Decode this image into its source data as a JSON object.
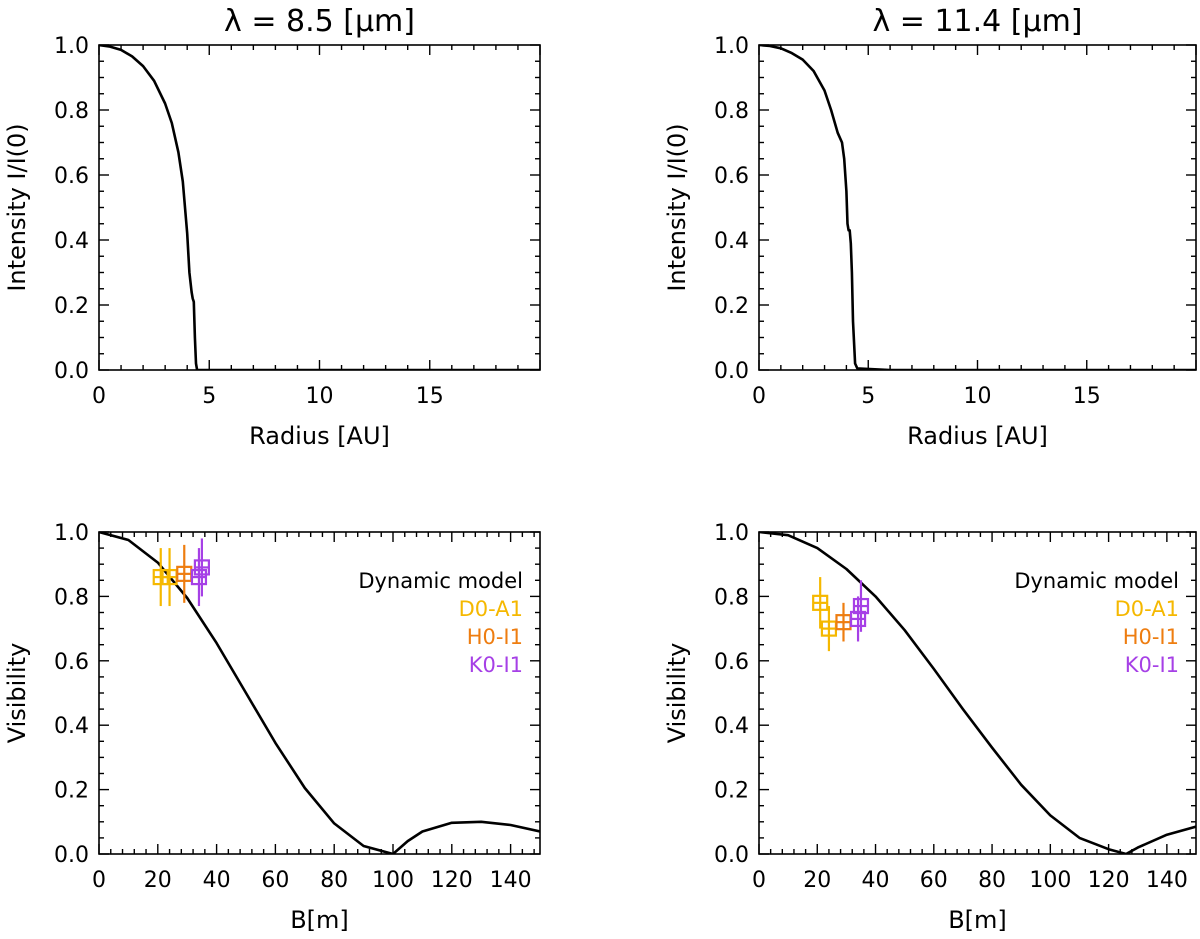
{
  "chart_data": [
    {
      "type": "line",
      "title": "λ = 8.5 [μm]",
      "xlabel": "Radius [AU]",
      "ylabel": "Intensity I/I(0)",
      "xlim": [
        0,
        20
      ],
      "ylim": [
        0,
        1.0
      ],
      "xticks": [
        0,
        5,
        10,
        15
      ],
      "xtick_labels": [
        "0",
        "5",
        "10",
        "15"
      ],
      "yticks": [
        0.0,
        0.2,
        0.4,
        0.6,
        0.8,
        1.0
      ],
      "ytick_labels": [
        "0.0",
        "0.2",
        "0.4",
        "0.6",
        "0.8",
        "1.0"
      ],
      "series": [
        {
          "name": "intensity profile",
          "x": [
            0,
            0.5,
            1.0,
            1.5,
            2.0,
            2.5,
            3.0,
            3.3,
            3.6,
            3.8,
            4.0,
            4.1,
            4.2,
            4.25,
            4.3,
            4.35,
            4.4,
            4.45,
            4.5,
            20
          ],
          "y": [
            1.0,
            0.995,
            0.985,
            0.965,
            0.935,
            0.89,
            0.82,
            0.76,
            0.67,
            0.58,
            0.42,
            0.3,
            0.24,
            0.22,
            0.21,
            0.1,
            0.02,
            0.0,
            0.0,
            0.0
          ]
        }
      ]
    },
    {
      "type": "line",
      "title": "λ = 11.4 [μm]",
      "xlabel": "Radius [AU]",
      "ylabel": "Intensity I/I(0)",
      "xlim": [
        0,
        20
      ],
      "ylim": [
        0,
        1.0
      ],
      "xticks": [
        0,
        5,
        10,
        15
      ],
      "xtick_labels": [
        "0",
        "5",
        "10",
        "15"
      ],
      "yticks": [
        0.0,
        0.2,
        0.4,
        0.6,
        0.8,
        1.0
      ],
      "ytick_labels": [
        "0.0",
        "0.2",
        "0.4",
        "0.6",
        "0.8",
        "1.0"
      ],
      "series": [
        {
          "name": "intensity profile",
          "x": [
            0,
            0.5,
            1.0,
            1.5,
            2.0,
            2.5,
            3.0,
            3.3,
            3.6,
            3.8,
            3.9,
            4.0,
            4.05,
            4.1,
            4.15,
            4.2,
            4.25,
            4.3,
            4.4,
            4.5,
            6.0,
            20
          ],
          "y": [
            1.0,
            0.997,
            0.99,
            0.975,
            0.955,
            0.92,
            0.86,
            0.8,
            0.73,
            0.7,
            0.65,
            0.55,
            0.45,
            0.43,
            0.43,
            0.39,
            0.3,
            0.15,
            0.02,
            0.005,
            0.0,
            0.0
          ]
        }
      ]
    },
    {
      "type": "line",
      "xlabel": "B[m]",
      "ylabel": "Visibility",
      "xlim": [
        0,
        150
      ],
      "ylim": [
        0,
        1.0
      ],
      "xticks": [
        0,
        20,
        40,
        60,
        80,
        100,
        120,
        140
      ],
      "xtick_labels": [
        "0",
        "20",
        "40",
        "60",
        "80",
        "100",
        "120",
        "140"
      ],
      "yticks": [
        0.0,
        0.2,
        0.4,
        0.6,
        0.8,
        1.0
      ],
      "ytick_labels": [
        "0.0",
        "0.2",
        "0.4",
        "0.6",
        "0.8",
        "1.0"
      ],
      "series": [
        {
          "name": "Dynamic model",
          "x": [
            0,
            10,
            20,
            30,
            40,
            50,
            60,
            70,
            80,
            90,
            100,
            105,
            110,
            120,
            130,
            140,
            150
          ],
          "y": [
            1.0,
            0.975,
            0.905,
            0.795,
            0.655,
            0.5,
            0.345,
            0.205,
            0.095,
            0.025,
            0.0,
            0.04,
            0.07,
            0.097,
            0.1,
            0.09,
            0.07
          ]
        }
      ],
      "legend": {
        "title": "Dynamic model",
        "entries": [
          {
            "label": "D0-A1",
            "color": "#f5b800"
          },
          {
            "label": "H0-I1",
            "color": "#ee7d10"
          },
          {
            "label": "K0-I1",
            "color": "#a640e6"
          }
        ]
      },
      "points": [
        {
          "group": "D0-A1",
          "x": 21,
          "y": 0.86,
          "err": 0.09
        },
        {
          "group": "D0-A1",
          "x": 24,
          "y": 0.86,
          "err": 0.09
        },
        {
          "group": "H0-I1",
          "x": 29,
          "y": 0.87,
          "err": 0.09
        },
        {
          "group": "K0-I1",
          "x": 34,
          "y": 0.86,
          "err": 0.09
        },
        {
          "group": "K0-I1",
          "x": 35,
          "y": 0.89,
          "err": 0.09
        }
      ]
    },
    {
      "type": "line",
      "xlabel": "B[m]",
      "ylabel": "Visibility",
      "xlim": [
        0,
        150
      ],
      "ylim": [
        0,
        1.0
      ],
      "xticks": [
        0,
        20,
        40,
        60,
        80,
        100,
        120,
        140
      ],
      "xtick_labels": [
        "0",
        "20",
        "40",
        "60",
        "80",
        "100",
        "120",
        "140"
      ],
      "yticks": [
        0.0,
        0.2,
        0.4,
        0.6,
        0.8,
        1.0
      ],
      "ytick_labels": [
        "0.0",
        "0.2",
        "0.4",
        "0.6",
        "0.8",
        "1.0"
      ],
      "series": [
        {
          "name": "Dynamic model",
          "x": [
            0,
            10,
            20,
            30,
            40,
            50,
            60,
            70,
            80,
            90,
            100,
            110,
            120,
            126,
            130,
            140,
            150
          ],
          "y": [
            1.0,
            0.99,
            0.95,
            0.885,
            0.8,
            0.695,
            0.575,
            0.45,
            0.33,
            0.215,
            0.12,
            0.05,
            0.015,
            0.0,
            0.02,
            0.06,
            0.085
          ]
        }
      ],
      "legend": {
        "title": "Dynamic model",
        "entries": [
          {
            "label": "D0-A1",
            "color": "#f5b800"
          },
          {
            "label": "H0-I1",
            "color": "#ee7d10"
          },
          {
            "label": "K0-I1",
            "color": "#a640e6"
          }
        ]
      },
      "points": [
        {
          "group": "D0-A1",
          "x": 21,
          "y": 0.78,
          "err": 0.08
        },
        {
          "group": "D0-A1",
          "x": 24,
          "y": 0.7,
          "err": 0.07
        },
        {
          "group": "H0-I1",
          "x": 29,
          "y": 0.72,
          "err": 0.06
        },
        {
          "group": "K0-I1",
          "x": 34,
          "y": 0.73,
          "err": 0.07
        },
        {
          "group": "K0-I1",
          "x": 35,
          "y": 0.77,
          "err": 0.08
        }
      ]
    }
  ]
}
